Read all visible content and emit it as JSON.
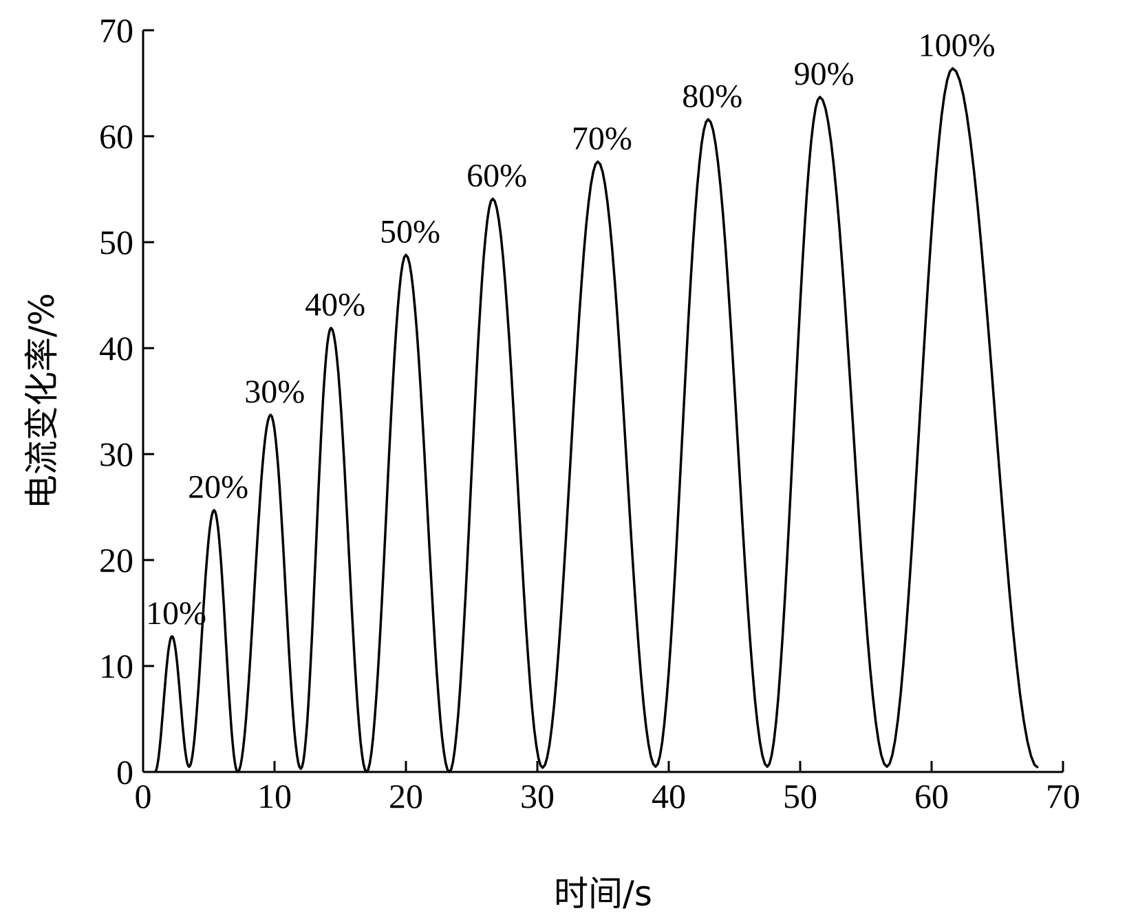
{
  "chart_data": {
    "type": "line",
    "title": "",
    "xlabel": "时间/s",
    "ylabel": "电流变化率/%",
    "xlim": [
      0,
      70
    ],
    "ylim": [
      0,
      70
    ],
    "xticks": [
      0,
      10,
      20,
      30,
      40,
      50,
      60,
      70
    ],
    "yticks": [
      0,
      10,
      20,
      30,
      40,
      50,
      60,
      70
    ],
    "grid": false,
    "legend": "none",
    "line_color": "#000000",
    "series": [
      {
        "values_note_free": true,
        "x": [
          0.9,
          2.2,
          3.5,
          5.4,
          7.2,
          9.7,
          12.0,
          14.3,
          17.0,
          20.0,
          23.3,
          26.6,
          30.4,
          34.6,
          39.0,
          43.0,
          47.5,
          51.5,
          56.6,
          61.6,
          68.1
        ],
        "y": [
          0,
          12.8,
          0.5,
          24.7,
          0,
          33.7,
          0.3,
          41.9,
          0,
          48.8,
          0,
          54.1,
          0.4,
          57.6,
          0.5,
          61.6,
          0.5,
          63.7,
          0.5,
          66.4,
          0.4
        ]
      }
    ],
    "peaks": [
      {
        "x": 2.2,
        "y": 12.8,
        "label": "10%"
      },
      {
        "x": 5.4,
        "y": 24.7,
        "label": "20%"
      },
      {
        "x": 9.7,
        "y": 33.7,
        "label": "30%"
      },
      {
        "x": 14.3,
        "y": 41.9,
        "label": "40%"
      },
      {
        "x": 20.0,
        "y": 48.8,
        "label": "50%"
      },
      {
        "x": 26.6,
        "y": 54.1,
        "label": "60%"
      },
      {
        "x": 34.6,
        "y": 57.6,
        "label": "70%"
      },
      {
        "x": 43.0,
        "y": 61.6,
        "label": "80%"
      },
      {
        "x": 51.5,
        "y": 63.7,
        "label": "90%"
      },
      {
        "x": 61.6,
        "y": 66.4,
        "label": "100%"
      }
    ]
  }
}
